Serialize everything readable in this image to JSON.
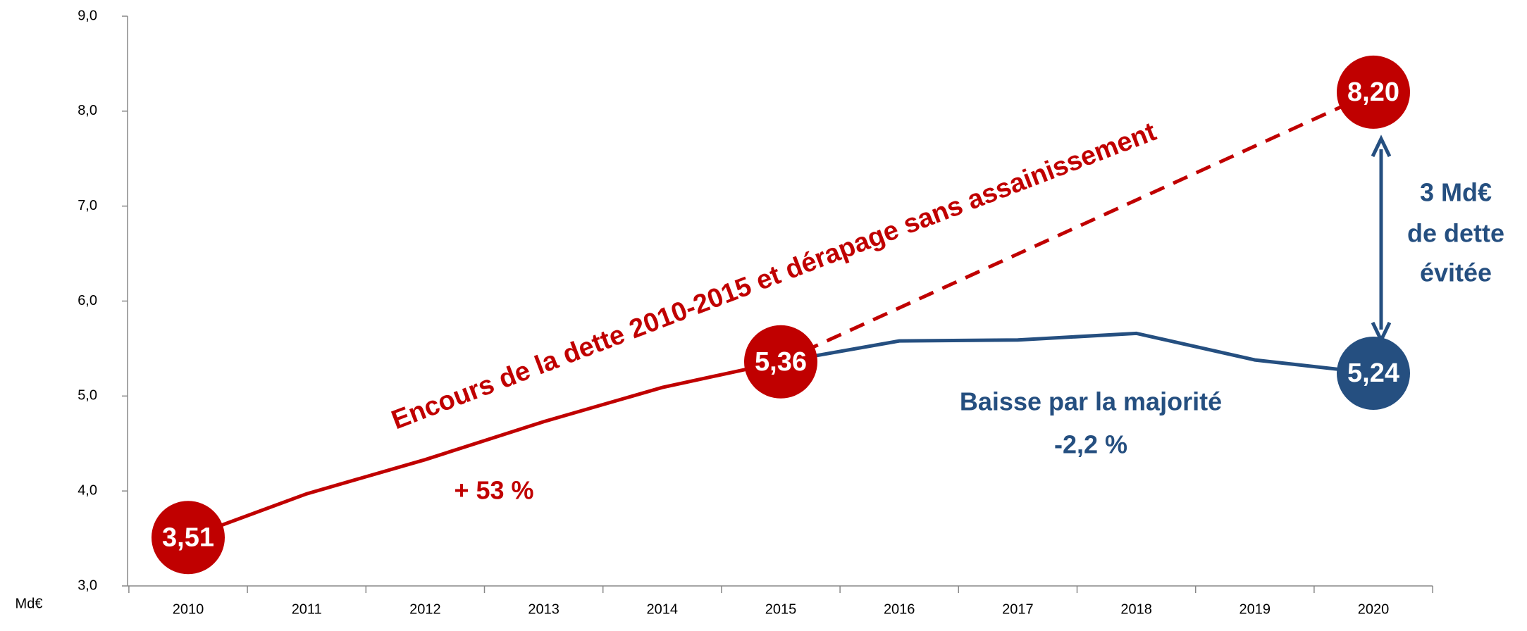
{
  "chart_data": {
    "type": "line",
    "categories": [
      "2010",
      "2011",
      "2012",
      "2013",
      "2014",
      "2015",
      "2016",
      "2017",
      "2018",
      "2019",
      "2020"
    ],
    "series": [
      {
        "name": "Encours de la dette 2010-2015",
        "color": "#c00000",
        "style": "solid",
        "values": [
          3.51,
          3.97,
          4.33,
          4.73,
          5.09,
          5.36,
          null,
          null,
          null,
          null,
          null
        ],
        "value_labels": [
          "3,51",
          null,
          null,
          null,
          null,
          "5,36",
          null,
          null,
          null,
          null,
          null
        ]
      },
      {
        "name": "Baisse par la majorité",
        "color": "#254f80",
        "style": "solid",
        "values": [
          null,
          null,
          null,
          null,
          null,
          5.36,
          5.58,
          5.59,
          5.66,
          5.38,
          5.24
        ],
        "value_labels": [
          null,
          null,
          null,
          null,
          null,
          null,
          null,
          null,
          null,
          null,
          "5,24"
        ]
      },
      {
        "name": "dérapage sans assainissement",
        "color": "#c00000",
        "style": "dashed",
        "values": [
          null,
          null,
          null,
          null,
          null,
          5.36,
          5.928,
          6.496,
          7.064,
          7.632,
          8.2
        ],
        "value_labels": [
          null,
          null,
          null,
          null,
          null,
          null,
          null,
          null,
          null,
          null,
          "8,20"
        ]
      }
    ],
    "ylim": [
      3,
      9
    ],
    "yticks": [
      {
        "value": 3,
        "label": "3,0"
      },
      {
        "value": 4,
        "label": "4,0"
      },
      {
        "value": 5,
        "label": "5,0"
      },
      {
        "value": 6,
        "label": "6,0"
      },
      {
        "value": 7,
        "label": "7,0"
      },
      {
        "value": 8,
        "label": "8,0"
      },
      {
        "value": 9,
        "label": "9,0"
      }
    ],
    "y_unit": "Md€",
    "annotations": {
      "trend": "Encours de la dette 2010-2015 et dérapage sans assainissement",
      "growth": "+ 53 %",
      "decline_title": "Baisse par la majorité",
      "decline_value": "-2,2 %",
      "avoided": [
        "3 Md€",
        "de dette",
        "évitée"
      ]
    }
  }
}
